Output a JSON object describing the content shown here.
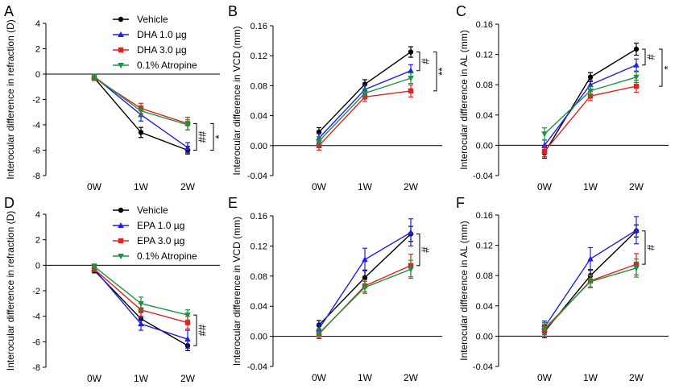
{
  "colors": {
    "Vehicle": "#000000",
    "DHA 1.0 µg": "#1f1fe6",
    "DHA 3.0 µg": "#e61f1f",
    "EPA 1.0 µg": "#1f1fe6",
    "EPA 3.0 µg": "#e61f1f",
    "0.1% Atropine": "#1a9441"
  },
  "chart_data": [
    {
      "panel": "A",
      "type": "line",
      "ylabel": "Interocular difference in refraction (D)",
      "categories": [
        "0W",
        "1W",
        "2W"
      ],
      "ylim": [
        -8,
        4
      ],
      "yticks": [
        4,
        2,
        0,
        -2,
        -4,
        -6,
        -8
      ],
      "legend": [
        "Vehicle",
        "DHA 1.0 µg",
        "DHA 3.0 µg",
        "0.1% Atropine"
      ],
      "series": [
        {
          "name": "Vehicle",
          "marker": "circle",
          "values": [
            -0.3,
            -4.6,
            -6.0
          ],
          "err": [
            0.2,
            0.4,
            0.3
          ]
        },
        {
          "name": "DHA 1.0 µg",
          "marker": "triangle-up",
          "values": [
            -0.2,
            -3.2,
            -5.8
          ],
          "err": [
            0.2,
            0.5,
            0.4
          ]
        },
        {
          "name": "DHA 3.0 µg",
          "marker": "square",
          "values": [
            -0.3,
            -2.7,
            -3.9
          ],
          "err": [
            0.2,
            0.4,
            0.5
          ]
        },
        {
          "name": "0.1% Atropine",
          "marker": "triangle-down",
          "values": [
            -0.2,
            -2.9,
            -4.0
          ],
          "err": [
            0.2,
            0.4,
            0.4
          ]
        }
      ],
      "annotations": [
        {
          "text": "##",
          "from": -3.9,
          "to": -6.0,
          "order": 1
        },
        {
          "text": "*",
          "from": -3.9,
          "to": -6.0,
          "order": 2
        }
      ]
    },
    {
      "panel": "B",
      "type": "line",
      "ylabel": "Interocular difference in VCD (mm)",
      "categories": [
        "0W",
        "1W",
        "2W"
      ],
      "ylim": [
        -0.04,
        0.16
      ],
      "yticks": [
        0.16,
        0.12,
        0.08,
        0.04,
        0.0,
        -0.04
      ],
      "series": [
        {
          "name": "Vehicle",
          "marker": "circle",
          "values": [
            0.018,
            0.082,
            0.125
          ],
          "err": [
            0.006,
            0.006,
            0.007
          ]
        },
        {
          "name": "DHA 1.0 µg",
          "marker": "triangle-up",
          "values": [
            0.01,
            0.075,
            0.1
          ],
          "err": [
            0.006,
            0.006,
            0.008
          ]
        },
        {
          "name": "DHA 3.0 µg",
          "marker": "square",
          "values": [
            0.0,
            0.065,
            0.073
          ],
          "err": [
            0.006,
            0.006,
            0.008
          ]
        },
        {
          "name": "0.1% Atropine",
          "marker": "triangle-down",
          "values": [
            0.006,
            0.07,
            0.09
          ],
          "err": [
            0.006,
            0.006,
            0.007
          ]
        }
      ],
      "annotations": [
        {
          "text": "#",
          "from": 0.125,
          "to": 0.1,
          "order": 1
        },
        {
          "text": "**",
          "from": 0.125,
          "to": 0.073,
          "order": 2
        }
      ]
    },
    {
      "panel": "C",
      "type": "line",
      "ylabel": "Interocular difference in AL (mm)",
      "categories": [
        "0W",
        "1W",
        "2W"
      ],
      "ylim": [
        -0.04,
        0.16
      ],
      "yticks": [
        0.16,
        0.12,
        0.08,
        0.04,
        0.0,
        -0.04
      ],
      "series": [
        {
          "name": "Vehicle",
          "marker": "circle",
          "values": [
            -0.01,
            0.09,
            0.127
          ],
          "err": [
            0.007,
            0.006,
            0.008
          ]
        },
        {
          "name": "DHA 1.0 µg",
          "marker": "triangle-up",
          "values": [
            0.0,
            0.08,
            0.106
          ],
          "err": [
            0.007,
            0.006,
            0.008
          ]
        },
        {
          "name": "DHA 3.0 µg",
          "marker": "square",
          "values": [
            -0.008,
            0.065,
            0.078
          ],
          "err": [
            0.007,
            0.006,
            0.008
          ]
        },
        {
          "name": "0.1% Atropine",
          "marker": "triangle-down",
          "values": [
            0.015,
            0.072,
            0.09
          ],
          "err": [
            0.008,
            0.006,
            0.007
          ]
        }
      ],
      "annotations": [
        {
          "text": "#",
          "from": 0.127,
          "to": 0.106,
          "order": 1
        },
        {
          "text": "*",
          "from": 0.127,
          "to": 0.078,
          "order": 2
        }
      ]
    },
    {
      "panel": "D",
      "type": "line",
      "ylabel": "Interocular difference in refraction (D)",
      "categories": [
        "0W",
        "1W",
        "2W"
      ],
      "ylim": [
        -8,
        4
      ],
      "yticks": [
        4,
        2,
        0,
        -2,
        -4,
        -6,
        -8
      ],
      "legend": [
        "Vehicle",
        "EPA 1.0 µg",
        "EPA 3.0 µg",
        "0.1% Atropine"
      ],
      "series": [
        {
          "name": "Vehicle",
          "marker": "circle",
          "values": [
            -0.4,
            -4.2,
            -6.3
          ],
          "err": [
            0.2,
            0.5,
            0.4
          ]
        },
        {
          "name": "EPA 1.0 µg",
          "marker": "triangle-up",
          "values": [
            -0.3,
            -4.6,
            -5.8
          ],
          "err": [
            0.2,
            0.5,
            0.7
          ]
        },
        {
          "name": "EPA 3.0 µg",
          "marker": "square",
          "values": [
            -0.3,
            -3.5,
            -4.5
          ],
          "err": [
            0.2,
            0.5,
            0.5
          ]
        },
        {
          "name": "0.1% Atropine",
          "marker": "triangle-down",
          "values": [
            -0.1,
            -3.0,
            -3.9
          ],
          "err": [
            0.2,
            0.5,
            0.4
          ]
        }
      ],
      "annotations": [
        {
          "text": "##",
          "from": -3.9,
          "to": -6.3,
          "order": 1
        }
      ]
    },
    {
      "panel": "E",
      "type": "line",
      "ylabel": "Interocular difference in VCD (mm)",
      "categories": [
        "0W",
        "1W",
        "2W"
      ],
      "ylim": [
        -0.04,
        0.16
      ],
      "yticks": [
        0.16,
        0.12,
        0.08,
        0.04,
        0.0,
        -0.04
      ],
      "series": [
        {
          "name": "Vehicle",
          "marker": "circle",
          "values": [
            0.015,
            0.078,
            0.136
          ],
          "err": [
            0.006,
            0.01,
            0.01
          ]
        },
        {
          "name": "EPA 1.0 µg",
          "marker": "triangle-up",
          "values": [
            0.01,
            0.102,
            0.138
          ],
          "err": [
            0.006,
            0.015,
            0.018
          ]
        },
        {
          "name": "EPA 3.0 µg",
          "marker": "square",
          "values": [
            0.003,
            0.067,
            0.094
          ],
          "err": [
            0.006,
            0.008,
            0.015
          ]
        },
        {
          "name": "0.1% Atropine",
          "marker": "triangle-down",
          "values": [
            0.004,
            0.065,
            0.089
          ],
          "err": [
            0.006,
            0.008,
            0.012
          ]
        }
      ],
      "annotations": [
        {
          "text": "#",
          "from": 0.136,
          "to": 0.094,
          "order": 1
        }
      ]
    },
    {
      "panel": "F",
      "type": "line",
      "ylabel": "Interocular difference in AL (mm)",
      "categories": [
        "0W",
        "1W",
        "2W"
      ],
      "ylim": [
        -0.04,
        0.16
      ],
      "yticks": [
        0.16,
        0.12,
        0.08,
        0.04,
        0.0,
        -0.04
      ],
      "series": [
        {
          "name": "Vehicle",
          "marker": "circle",
          "values": [
            0.006,
            0.08,
            0.139
          ],
          "err": [
            0.008,
            0.008,
            0.008
          ]
        },
        {
          "name": "EPA 1.0 µg",
          "marker": "triangle-up",
          "values": [
            0.012,
            0.102,
            0.14
          ],
          "err": [
            0.008,
            0.015,
            0.018
          ]
        },
        {
          "name": "EPA 3.0 µg",
          "marker": "square",
          "values": [
            0.008,
            0.073,
            0.095
          ],
          "err": [
            0.008,
            0.008,
            0.014
          ]
        },
        {
          "name": "0.1% Atropine",
          "marker": "triangle-down",
          "values": [
            0.01,
            0.072,
            0.09
          ],
          "err": [
            0.008,
            0.008,
            0.012
          ]
        }
      ],
      "annotations": [
        {
          "text": "#",
          "from": 0.139,
          "to": 0.095,
          "order": 1
        }
      ]
    }
  ]
}
